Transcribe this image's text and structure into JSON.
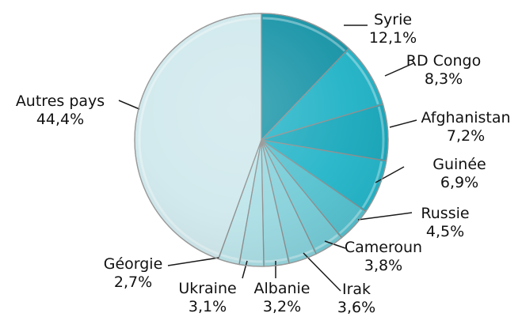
{
  "chart_data": {
    "type": "pie",
    "title": "",
    "slices": [
      {
        "label": "Syrie",
        "value": 12.1,
        "value_label": "12,1%",
        "color": "#1593a6"
      },
      {
        "label": "RD Congo",
        "value": 8.3,
        "value_label": "8,3%",
        "color": "#1fb2c6"
      },
      {
        "label": "Afghanistan",
        "value": 7.2,
        "value_label": "7,2%",
        "color": "#18a8bc"
      },
      {
        "label": "Guinée",
        "value": 6.9,
        "value_label": "6,9%",
        "color": "#22b4c8"
      },
      {
        "label": "Russie",
        "value": 4.5,
        "value_label": "4,5%",
        "color": "#53c0ce"
      },
      {
        "label": "Cameroun",
        "value": 3.8,
        "value_label": "3,8%",
        "color": "#73cbd6"
      },
      {
        "label": "Irak",
        "value": 3.6,
        "value_label": "3,6%",
        "color": "#86d1db"
      },
      {
        "label": "Albanie",
        "value": 3.2,
        "value_label": "3,2%",
        "color": "#99d8e0"
      },
      {
        "label": "Ukraine",
        "value": 3.1,
        "value_label": "3,1%",
        "color": "#aadee5"
      },
      {
        "label": "Géorgie",
        "value": 2.7,
        "value_label": "2,7%",
        "color": "#bde5ea"
      },
      {
        "label": "Autres pays",
        "value": 44.4,
        "value_label": "44,4%",
        "color": "#cfe8ec"
      }
    ],
    "start_angle": "12 o'clock",
    "direction": "clockwise",
    "legend": "none"
  }
}
